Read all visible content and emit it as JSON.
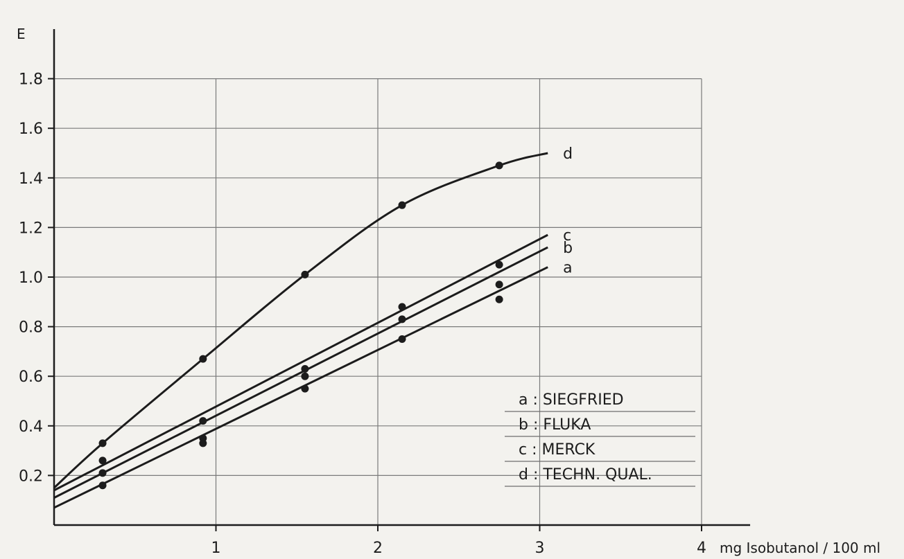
{
  "chart_data": {
    "type": "line",
    "title": "",
    "xlabel": "mg Isobutanol / 100 ml",
    "ylabel": "E",
    "xlim": [
      0,
      4.3
    ],
    "ylim": [
      0,
      2.0
    ],
    "x_ticks": [
      "1",
      "2",
      "3",
      "4"
    ],
    "y_ticks": [
      "0.2",
      "0.4",
      "0.6",
      "0.8",
      "1.0",
      "1.2",
      "1.4",
      "1.6",
      "1.8"
    ],
    "grid": true,
    "legend_position": "bottom-right",
    "legend": [
      {
        "key": "a",
        "label": "a : SIEGFRIED"
      },
      {
        "key": "b",
        "label": "b : FLUKA"
      },
      {
        "key": "c",
        "label": "c : MERCK"
      },
      {
        "key": "d",
        "label": "d : TECHN. QUAL."
      }
    ],
    "series": [
      {
        "name": "a",
        "label": "a",
        "line_x": [
          0,
          3.05
        ],
        "line_y": [
          0.07,
          1.04
        ],
        "points": [
          [
            0.3,
            0.16
          ],
          [
            0.92,
            0.33
          ],
          [
            1.55,
            0.55
          ],
          [
            2.15,
            0.75
          ],
          [
            2.75,
            0.91
          ]
        ]
      },
      {
        "name": "b",
        "label": "b",
        "line_x": [
          0,
          3.05
        ],
        "line_y": [
          0.11,
          1.12
        ],
        "points": [
          [
            0.3,
            0.21
          ],
          [
            0.92,
            0.35
          ],
          [
            1.55,
            0.6
          ],
          [
            2.15,
            0.83
          ],
          [
            2.75,
            0.97
          ]
        ]
      },
      {
        "name": "c",
        "label": "c",
        "line_x": [
          0,
          3.05
        ],
        "line_y": [
          0.14,
          1.17
        ],
        "points": [
          [
            0.3,
            0.26
          ],
          [
            0.92,
            0.42
          ],
          [
            1.55,
            0.63
          ],
          [
            2.15,
            0.88
          ],
          [
            2.75,
            1.05
          ]
        ]
      },
      {
        "name": "d",
        "label": "d",
        "line_x": [
          0,
          0.3,
          0.92,
          1.55,
          2.15,
          2.75,
          3.05
        ],
        "line_y": [
          0.15,
          0.33,
          0.67,
          1.01,
          1.29,
          1.45,
          1.5
        ],
        "points": [
          [
            0.3,
            0.33
          ],
          [
            0.92,
            0.67
          ],
          [
            1.55,
            1.01
          ],
          [
            2.15,
            1.29
          ],
          [
            2.75,
            1.45
          ]
        ],
        "smooth": true
      }
    ]
  }
}
